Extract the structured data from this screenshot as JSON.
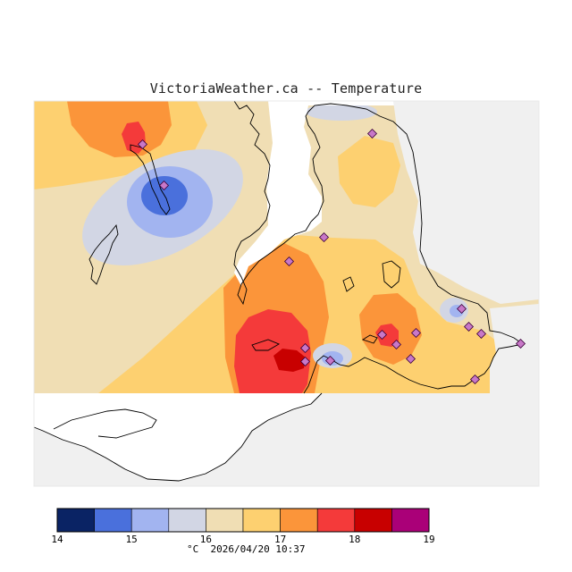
{
  "title": "VictoriaWeather.ca -- Temperature",
  "colors": {
    "land": "#f0f0f0",
    "water": "#ffffff",
    "coast": "#000000",
    "station_fill": "#c878c8",
    "station_stroke": "#3a003a"
  },
  "legend": {
    "unit": "°C",
    "timestamp": "2026/04/20 10:37",
    "ticks": [
      "14",
      "15",
      "16",
      "17",
      "18",
      "19"
    ],
    "bins": [
      {
        "min": 14.0,
        "max": 14.5,
        "color": "#0a2364"
      },
      {
        "min": 14.5,
        "max": 15.0,
        "color": "#4a70dc"
      },
      {
        "min": 15.0,
        "max": 15.5,
        "color": "#a2b4f0"
      },
      {
        "min": 15.5,
        "max": 16.0,
        "color": "#d2d6e4"
      },
      {
        "min": 16.0,
        "max": 16.5,
        "color": "#f0deb4"
      },
      {
        "min": 16.5,
        "max": 17.0,
        "color": "#fdd070"
      },
      {
        "min": 17.0,
        "max": 17.5,
        "color": "#fb953a"
      },
      {
        "min": 17.5,
        "max": 18.0,
        "color": "#f43a3a"
      },
      {
        "min": 18.0,
        "max": 18.5,
        "color": "#c80000"
      },
      {
        "min": 18.5,
        "max": 19.0,
        "color": "#aa0078"
      }
    ]
  }
}
